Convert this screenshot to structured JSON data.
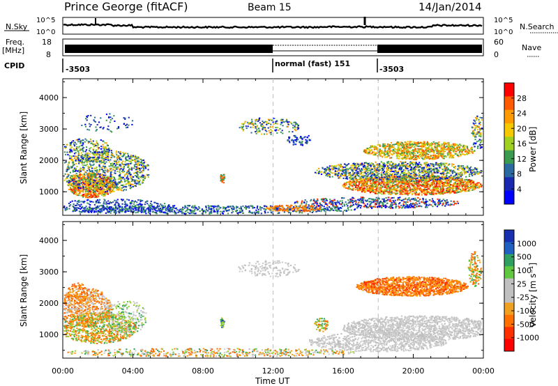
{
  "header": {
    "station": "Prince George (fitACF)",
    "beam": "Beam 15",
    "date": "14/Jan/2014"
  },
  "noise_panel": {
    "left_label": "N.Sky",
    "left_ticks": [
      "10^5",
      "10^0"
    ],
    "right_ticks": [
      "10^5",
      "10^0"
    ],
    "right_label": "N.Search"
  },
  "freq_panel": {
    "left_label_1": "Freq.",
    "left_label_2": "[MHz]",
    "left_ticks": [
      "18",
      "8"
    ],
    "right_ticks": [
      "60",
      "0"
    ],
    "right_label": "Nave"
  },
  "cpid_panel": {
    "label": "CPID",
    "segments": [
      {
        "label": "-3503",
        "start_h": 0
      },
      {
        "label": "normal (fast) 151",
        "start_h": 12
      },
      {
        "label": "-3503",
        "start_h": 18
      }
    ]
  },
  "power_colorbar": {
    "label": "Power [dB]",
    "ticks": [
      "28",
      "24",
      "20",
      "16",
      "12",
      "8",
      "4"
    ],
    "colors": [
      "#ff0000",
      "#ff5a00",
      "#ff9a00",
      "#f5c800",
      "#a0d020",
      "#3a9a50",
      "#2a6aa0",
      "#1a2ab0",
      "#0000ff"
    ]
  },
  "velocity_colorbar": {
    "label": "Velocity [m s⁻¹]",
    "ticks": [
      "1000",
      "500",
      "100",
      "25",
      "-25",
      "-100",
      "-500",
      "-1000"
    ],
    "colors": [
      "#1830b0",
      "#2060c0",
      "#30a060",
      "#60c840",
      "#c0c0c0",
      "#c0c0c0",
      "#f0a020",
      "#ff7000",
      "#ff3000",
      "#ff0000"
    ]
  },
  "chart_data": [
    {
      "type": "heatmap",
      "name": "power",
      "ylabel": "Slant Range [km]",
      "yticks": [
        "1000",
        "2000",
        "3000",
        "4000"
      ],
      "ylim": [
        250,
        4600
      ],
      "xlim_hours": [
        0,
        24
      ],
      "xticks": [
        "00:00",
        "04:00",
        "08:00",
        "12:00",
        "16:00",
        "20:00",
        "00:00"
      ],
      "mode_change_lines_h": [
        12,
        18
      ]
    },
    {
      "type": "heatmap",
      "name": "velocity",
      "ylabel": "Slant Range [km]",
      "yticks": [
        "1000",
        "2000",
        "3000",
        "4000"
      ],
      "ylim": [
        250,
        4600
      ],
      "xlim_hours": [
        0,
        24
      ],
      "xticks": [
        "00:00",
        "04:00",
        "08:00",
        "12:00",
        "16:00",
        "20:00",
        "00:00"
      ],
      "xlabel": "Time UT",
      "mode_change_lines_h": [
        12,
        18
      ]
    }
  ]
}
